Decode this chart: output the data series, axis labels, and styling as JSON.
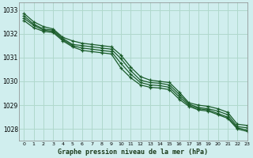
{
  "title": "Graphe pression niveau de la mer (hPa)",
  "background_color": "#d0eeee",
  "grid_color": "#b0d8cc",
  "line_color": "#1a5c2a",
  "xlim": [
    -0.5,
    23
  ],
  "ylim": [
    1027.5,
    1033.3
  ],
  "yticks": [
    1028,
    1029,
    1030,
    1031,
    1032,
    1033
  ],
  "xticks": [
    0,
    1,
    2,
    3,
    4,
    5,
    6,
    7,
    8,
    9,
    10,
    11,
    12,
    13,
    14,
    15,
    16,
    17,
    18,
    19,
    20,
    21,
    22,
    23
  ],
  "series": [
    [
      1032.85,
      1032.5,
      1032.3,
      1032.2,
      1031.85,
      1031.7,
      1031.6,
      1031.55,
      1031.5,
      1031.45,
      1031.1,
      1030.6,
      1030.2,
      1030.05,
      1030.0,
      1029.95,
      1029.55,
      1029.1,
      1029.0,
      1028.95,
      1028.85,
      1028.7,
      1028.2,
      1028.15
    ],
    [
      1032.75,
      1032.4,
      1032.2,
      1032.15,
      1031.8,
      1031.55,
      1031.5,
      1031.45,
      1031.4,
      1031.35,
      1030.95,
      1030.45,
      1030.05,
      1029.95,
      1029.92,
      1029.85,
      1029.45,
      1029.05,
      1028.9,
      1028.85,
      1028.75,
      1028.6,
      1028.1,
      1028.05
    ],
    [
      1032.65,
      1032.35,
      1032.15,
      1032.1,
      1031.75,
      1031.5,
      1031.4,
      1031.35,
      1031.3,
      1031.25,
      1030.75,
      1030.3,
      1029.95,
      1029.85,
      1029.82,
      1029.75,
      1029.35,
      1029.0,
      1028.85,
      1028.8,
      1028.65,
      1028.5,
      1028.05,
      1027.95
    ],
    [
      1032.55,
      1032.25,
      1032.1,
      1032.05,
      1031.7,
      1031.45,
      1031.3,
      1031.25,
      1031.2,
      1031.15,
      1030.55,
      1030.15,
      1029.85,
      1029.75,
      1029.72,
      1029.65,
      1029.25,
      1028.95,
      1028.8,
      1028.75,
      1028.6,
      1028.45,
      1028.0,
      1027.9
    ]
  ]
}
